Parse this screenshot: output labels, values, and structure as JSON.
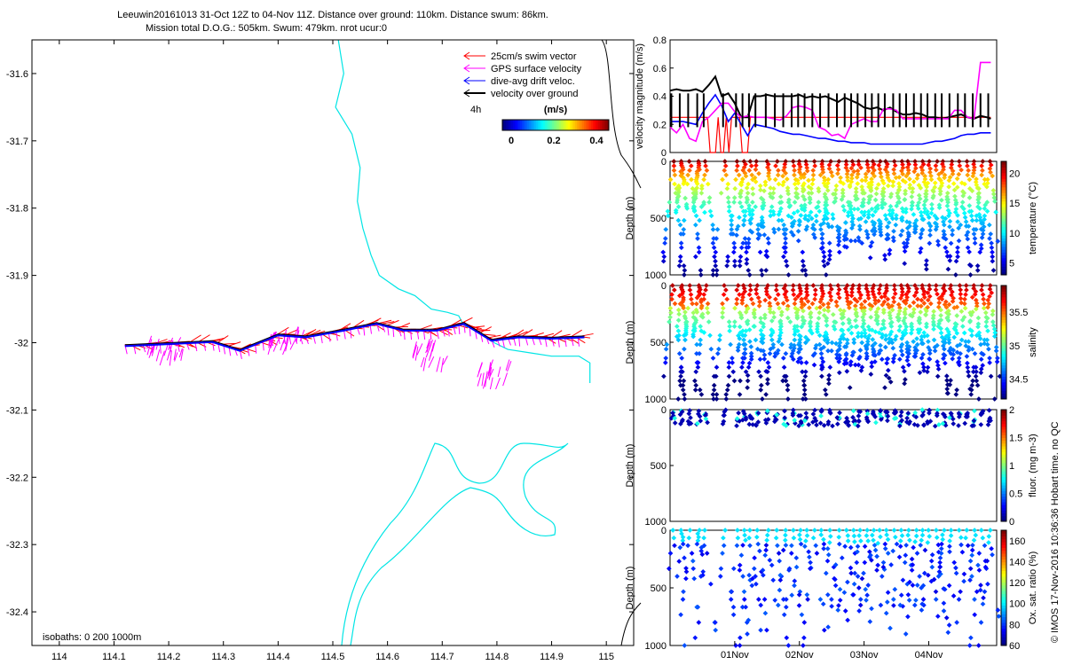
{
  "header": {
    "line1": "Leeuwin20161013 31-Oct 12Z to 04-Nov 11Z. Distance over ground: 110km. Distance swum: 86km.",
    "line2": "Mission total D.O.G.: 505km. Swum: 479km. nrot ucur:0"
  },
  "footer": {
    "isobaths": "isobaths: 0   200  1000m",
    "credit": "© IMOS 17-Nov-2016 10:36:36 Hobart time. no QC"
  },
  "colors": {
    "swim": "#ff0000",
    "gps": "#ff00ff",
    "drift": "#0000ff",
    "ground": "#000000",
    "isobath": "#00e5e5"
  },
  "chart_data": [
    {
      "type": "line",
      "id": "map",
      "xlim": [
        113.95,
        115.05
      ],
      "ylim": [
        -32.45,
        -31.55
      ],
      "xticks": [
        "114",
        "114.1",
        "114.2",
        "114.3",
        "114.4",
        "114.5",
        "114.6",
        "114.7",
        "114.8",
        "114.9",
        "115"
      ],
      "yticks": [
        "-31.6",
        "-31.7",
        "-31.8",
        "-31.9",
        "-32",
        "-32.1",
        "-32.2",
        "-32.3",
        "-32.4"
      ],
      "legend": [
        "25cm/s swim vector",
        "GPS surface velocity",
        "dive-avg drift veloc.",
        "velocity over ground"
      ],
      "legend_label_4h": "4h",
      "colorbar": {
        "title": "(m/s)",
        "ticks": [
          "0",
          "0.2",
          "0.4"
        ]
      },
      "track": {
        "lon": [
          114.12,
          114.2,
          114.28,
          114.33,
          114.4,
          114.45,
          114.52,
          114.58,
          114.63,
          114.69,
          114.74,
          114.79,
          114.84,
          114.9,
          114.96
        ],
        "lat": [
          -32.003,
          -32.0,
          -31.997,
          -32.01,
          -31.987,
          -31.99,
          -31.98,
          -31.97,
          -31.98,
          -31.98,
          -31.97,
          -31.995,
          -31.99,
          -31.992,
          -31.99
        ]
      },
      "isobath_line": {
        "lon": [
          114.51,
          114.52,
          114.505,
          114.535,
          114.55,
          114.545,
          114.555,
          114.57,
          114.585,
          114.62,
          114.65,
          114.68,
          114.71,
          114.73,
          114.74,
          114.76,
          114.78,
          114.795,
          114.82,
          114.86,
          114.9,
          114.95,
          114.97,
          114.97
        ],
        "lat": [
          -31.55,
          -31.6,
          -31.65,
          -31.69,
          -31.74,
          -31.79,
          -31.83,
          -31.87,
          -31.9,
          -31.92,
          -31.93,
          -31.95,
          -31.955,
          -31.96,
          -31.975,
          -31.98,
          -31.99,
          -32.0,
          -32.01,
          -32.015,
          -32.02,
          -32.02,
          -32.03,
          -32.06
        ]
      }
    },
    {
      "type": "line",
      "id": "velocity",
      "ylabel": "velocity magnitude (m/s)",
      "ylim": [
        0,
        0.8
      ],
      "yticks": [
        "0",
        "0.2",
        "0.4",
        "0.6",
        "0.8"
      ],
      "x": [
        0,
        0.1,
        0.2,
        0.3,
        0.4,
        0.5,
        0.6,
        0.7,
        0.8,
        0.9,
        1.0,
        1.1,
        1.2,
        1.3,
        1.4,
        1.5,
        1.6,
        1.7,
        1.8,
        1.9,
        2.0,
        2.1,
        2.2,
        2.3,
        2.4,
        2.5,
        2.6,
        2.7,
        2.8,
        2.9,
        3.0,
        3.1,
        3.2,
        3.3,
        3.4,
        3.5,
        3.6,
        3.7,
        3.8,
        3.9,
        4.0,
        4.1,
        4.2,
        4.3,
        4.4,
        4.5,
        4.6,
        4.7,
        4.8,
        4.9,
        4.96
      ],
      "series": [
        {
          "color": "#000000",
          "values": [
            0.44,
            0.45,
            0.44,
            0.44,
            0.45,
            0.43,
            0.48,
            0.54,
            0.4,
            0.42,
            0.35,
            0.25,
            0.25,
            0.4,
            0.4,
            0.41,
            0.4,
            0.4,
            0.4,
            0.4,
            0.41,
            0.39,
            0.4,
            0.39,
            0.4,
            0.38,
            0.36,
            0.39,
            0.37,
            0.35,
            0.32,
            0.31,
            0.32,
            0.3,
            0.32,
            0.29,
            0.27,
            0.27,
            0.28,
            0.27,
            0.25,
            0.25,
            0.24,
            0.25,
            0.26,
            0.27,
            0.25,
            0.24,
            0.26,
            0.25,
            0.24
          ]
        },
        {
          "color": "#0000ff",
          "values": [
            0.22,
            0.22,
            0.22,
            0.21,
            0.2,
            0.28,
            0.35,
            0.41,
            0.33,
            0.22,
            0.28,
            0.2,
            0.12,
            0.2,
            0.19,
            0.18,
            0.17,
            0.15,
            0.14,
            0.13,
            0.13,
            0.12,
            0.11,
            0.1,
            0.1,
            0.09,
            0.08,
            0.08,
            0.07,
            0.07,
            0.07,
            0.06,
            0.06,
            0.06,
            0.06,
            0.06,
            0.06,
            0.06,
            0.06,
            0.06,
            0.07,
            0.08,
            0.08,
            0.09,
            0.1,
            0.12,
            0.13,
            0.13,
            0.14,
            0.14,
            0.14
          ]
        },
        {
          "color": "#ff00ff",
          "values": [
            0.18,
            0.14,
            0.2,
            0.1,
            0.08,
            0.22,
            0.25,
            0.3,
            0.35,
            0.35,
            0.29,
            0.25,
            0.26,
            0.25,
            0.25,
            0.25,
            0.24,
            0.23,
            0.26,
            0.32,
            0.33,
            0.32,
            0.3,
            0.18,
            0.16,
            0.12,
            0.13,
            0.1,
            0.2,
            0.22,
            0.24,
            0.22,
            0.22,
            0.31,
            0.31,
            0.3,
            0.24,
            0.24,
            0.24,
            0.24,
            0.24,
            0.24,
            0.24,
            0.24,
            0.3,
            0.3,
            0.25,
            0.24,
            0.64,
            0.64,
            0.64
          ]
        },
        {
          "color": "#ff0000",
          "values": [
            0.25,
            0.25,
            0.25,
            0.25,
            0.25,
            0.25,
            0.25,
            0.25,
            0.25,
            0.25,
            0.25,
            0.25,
            0.25,
            0.25,
            0.25,
            0.25,
            0.25,
            0.25,
            0.25,
            0.25,
            0.25,
            0.25,
            0.25,
            0.25,
            0.25,
            0.25,
            0.25,
            0.25,
            0.25,
            0.25,
            0.25,
            0.25,
            0.25,
            0.25,
            0.25,
            0.25,
            0.25,
            0.25,
            0.25,
            0.25,
            0.25,
            0.25,
            0.25,
            0.25,
            0.25,
            0.25,
            0.25,
            0.25,
            0.25,
            0.25,
            0.25
          ]
        }
      ]
    },
    {
      "type": "scatter",
      "id": "temperature",
      "ylabel": "Depth (m)",
      "yticks": [
        "0",
        "500",
        "1000"
      ],
      "clabel": "temperature (°C)",
      "cticks": [
        "5",
        "10",
        "15",
        "20"
      ]
    },
    {
      "type": "scatter",
      "id": "salinity",
      "ylabel": "Depth (m)",
      "yticks": [
        "0",
        "500",
        "1000"
      ],
      "clabel": "salinity",
      "cticks": [
        "34.5",
        "35",
        "35.5"
      ]
    },
    {
      "type": "scatter",
      "id": "fluorescence",
      "ylabel": "Depth (m)",
      "yticks": [
        "0",
        "500",
        "1000"
      ],
      "clabel": "fluor. (mg m-3)",
      "cticks": [
        "0",
        "0.5",
        "1",
        "1.5",
        "2"
      ]
    },
    {
      "type": "scatter",
      "id": "oxygen",
      "ylabel": "Depth (m)",
      "yticks": [
        "0",
        "500",
        "1000"
      ],
      "clabel": "Ox. sat. ratio (%)",
      "cticks": [
        "60",
        "80",
        "100",
        "120",
        "140",
        "160"
      ],
      "xticks": [
        "01Nov",
        "02Nov",
        "03Nov",
        "04Nov"
      ]
    }
  ],
  "dives": {
    "day": [
      0.02,
      0.15,
      0.28,
      0.42,
      0.52,
      0.82,
      1.02,
      1.12,
      1.22,
      1.32,
      1.48,
      1.62,
      1.75,
      1.88,
      1.98,
      2.08,
      2.2,
      2.32,
      2.45,
      2.58,
      2.7,
      2.8,
      2.9,
      3.02,
      3.12,
      3.22,
      3.32,
      3.45,
      3.55,
      3.65,
      3.77,
      3.88,
      3.98,
      4.1,
      4.2,
      4.32,
      4.45,
      4.56,
      4.68,
      4.8,
      4.92
    ],
    "max_depth": [
      1000,
      450,
      1000,
      450,
      1000,
      1000,
      1000,
      650,
      1000,
      900,
      650,
      1000,
      650,
      1000,
      600,
      700,
      1000,
      600,
      800,
      900,
      700,
      750,
      700,
      700,
      650,
      850,
      600,
      900,
      700,
      650,
      750,
      650,
      800,
      950,
      600,
      700,
      950,
      1000,
      650,
      1000,
      800
    ]
  }
}
